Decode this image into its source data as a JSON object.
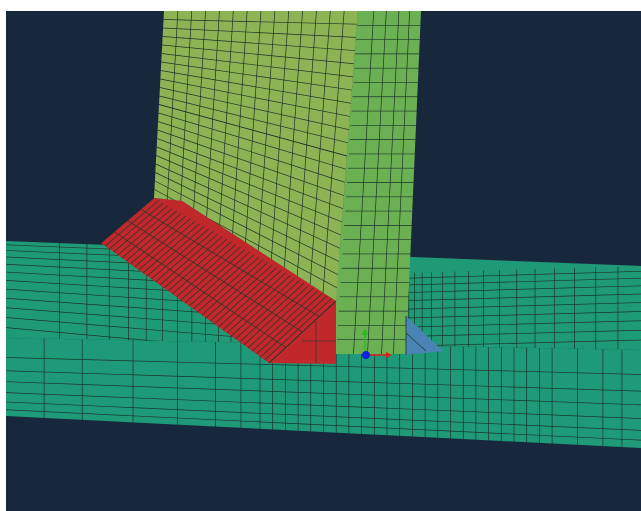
{
  "viewport": {
    "background_color": "#18283c",
    "mesh_line_color": "#1d3328"
  },
  "parts": {
    "base_plate": {
      "name": "base-plate",
      "top_color": "#1f9a76",
      "front_color": "#1e9a78"
    },
    "vertical_web": {
      "name": "vertical-web",
      "side_color": "#8cb454",
      "face_color": "#6cb054"
    },
    "weld_left": {
      "name": "left-fillet-weld",
      "color": "#c0282c"
    },
    "weld_right": {
      "name": "right-fillet-weld",
      "color": "#4a84b4"
    }
  },
  "triad": {
    "x_axis_color": "#e02020",
    "y_axis_color": "#20c020",
    "z_axis_color": "#1020e0"
  }
}
